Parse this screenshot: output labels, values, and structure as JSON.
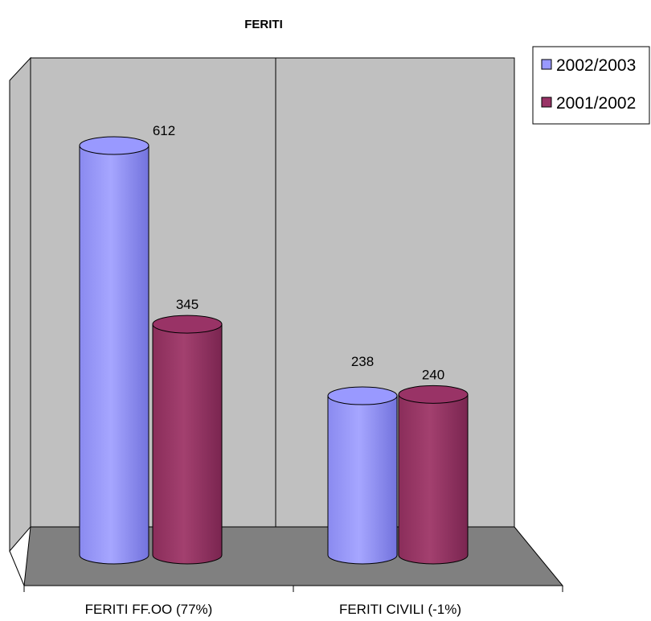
{
  "chart_data": {
    "type": "bar",
    "title": "FERITI",
    "categories": [
      "FERITI FF.OO (77%)",
      "FERITI CIVILI (-1%)"
    ],
    "series": [
      {
        "name": "2002/2003",
        "values": [
          612,
          238
        ],
        "color": "#9999ff"
      },
      {
        "name": "2001/2002",
        "values": [
          345,
          240
        ],
        "color": "#993366"
      }
    ],
    "ylim": [
      0,
      700
    ],
    "grid": false,
    "legend": "top-right",
    "style": "3d-cylinder"
  },
  "colors": {
    "wall": "#c0c0c0",
    "floor": "#808080",
    "outline": "#000000",
    "background": "#ffffff"
  }
}
